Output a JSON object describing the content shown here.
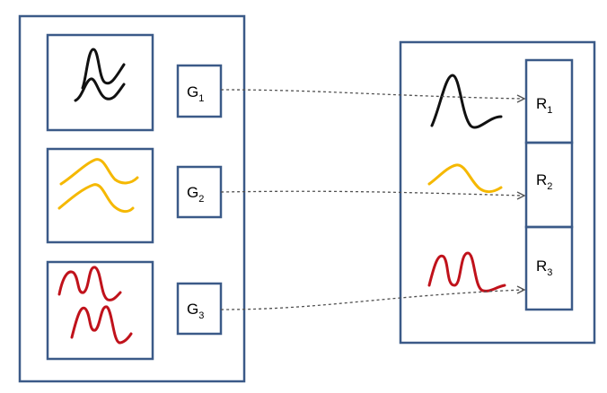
{
  "colors": {
    "frame": "#3b5a88",
    "signal_1": "#111111",
    "signal_2": "#f5b800",
    "signal_3": "#c0121b",
    "connector": "#505050"
  },
  "groups": [
    {
      "letter": "G",
      "sub": "1",
      "signal_color": "#111111"
    },
    {
      "letter": "G",
      "sub": "2",
      "signal_color": "#f5b800"
    },
    {
      "letter": "G",
      "sub": "3",
      "signal_color": "#c0121b"
    }
  ],
  "results": [
    {
      "letter": "R",
      "sub": "1"
    },
    {
      "letter": "R",
      "sub": "2"
    },
    {
      "letter": "R",
      "sub": "3"
    }
  ]
}
